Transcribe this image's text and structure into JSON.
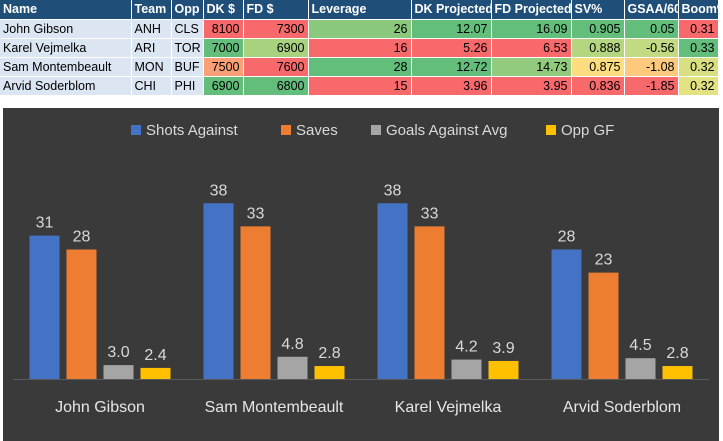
{
  "table": {
    "columns": [
      "Name",
      "Team",
      "Opp",
      "DK $",
      "FD $",
      "Leverage",
      "DK Projected",
      "FD Projected",
      "SV%",
      "GSAA/60",
      "Boom%"
    ],
    "rows": [
      {
        "cells": [
          "John Gibson",
          "ANH",
          "CLS",
          "8100",
          "7300",
          "26",
          "12.07",
          "16.09",
          "0.905",
          "0.05",
          "0.31"
        ],
        "colors": [
          "",
          "",
          "",
          "#f8696b",
          "#f8696b",
          "#8ac97d",
          "#63be7b",
          "#63be7b",
          "#63be7b",
          "#63be7b",
          "#f8696b"
        ]
      },
      {
        "cells": [
          "Karel Vejmelka",
          "ARI",
          "TOR",
          "7000",
          "6900",
          "16",
          "5.26",
          "6.53",
          "0.888",
          "-0.56",
          "0.33"
        ],
        "colors": [
          "",
          "",
          "",
          "#63be7b",
          "#a9d27f",
          "#f8696b",
          "#f8696b",
          "#f8696b",
          "#b5d680",
          "#c2da81",
          "#63be7b"
        ]
      },
      {
        "cells": [
          "Sam Montembeault",
          "MON",
          "BUF",
          "7500",
          "7600",
          "28",
          "12.72",
          "14.73",
          "0.875",
          "-1.08",
          "0.32"
        ],
        "colors": [
          "",
          "",
          "",
          "#fba076",
          "#f8696b",
          "#63be7b",
          "#63be7b",
          "#92cb7e",
          "#fedd81",
          "#fdca7d",
          "#d8df81"
        ]
      },
      {
        "cells": [
          "Arvid Soderblom",
          "CHI",
          "PHI",
          "6900",
          "6800",
          "15",
          "3.96",
          "3.95",
          "0.836",
          "-1.85",
          "0.32"
        ],
        "colors": [
          "",
          "",
          "",
          "#63be7b",
          "#63be7b",
          "#f8696b",
          "#f8696b",
          "#f8696b",
          "#f8696b",
          "#f8696b",
          "#e3e282"
        ]
      }
    ]
  },
  "chart_data": {
    "type": "bar",
    "categories": [
      "John Gibson",
      "Sam Montembeault",
      "Karel Vejmelka",
      "Arvid Soderblom"
    ],
    "series": [
      {
        "name": "Shots Against",
        "values": [
          31,
          38,
          38,
          28
        ],
        "labels": [
          "31",
          "38",
          "38",
          "28"
        ],
        "color": "#4472c4"
      },
      {
        "name": "Saves",
        "values": [
          28,
          33,
          33,
          23
        ],
        "labels": [
          "28",
          "33",
          "33",
          "23"
        ],
        "color": "#ed7d31"
      },
      {
        "name": "Goals Against Avg",
        "values": [
          3.0,
          4.8,
          4.2,
          4.5
        ],
        "labels": [
          "3.0",
          "4.8",
          "4.2",
          "4.5"
        ],
        "color": "#a5a5a5"
      },
      {
        "name": "Opp GF",
        "values": [
          2.4,
          2.8,
          3.9,
          2.8
        ],
        "labels": [
          "2.4",
          "2.8",
          "3.9",
          "2.8"
        ],
        "color": "#ffc000"
      }
    ],
    "ylim": [
      0,
      40
    ],
    "grid": false,
    "legend": "top",
    "background": "#3a3a3a",
    "text_color": "#d9d9d9"
  }
}
